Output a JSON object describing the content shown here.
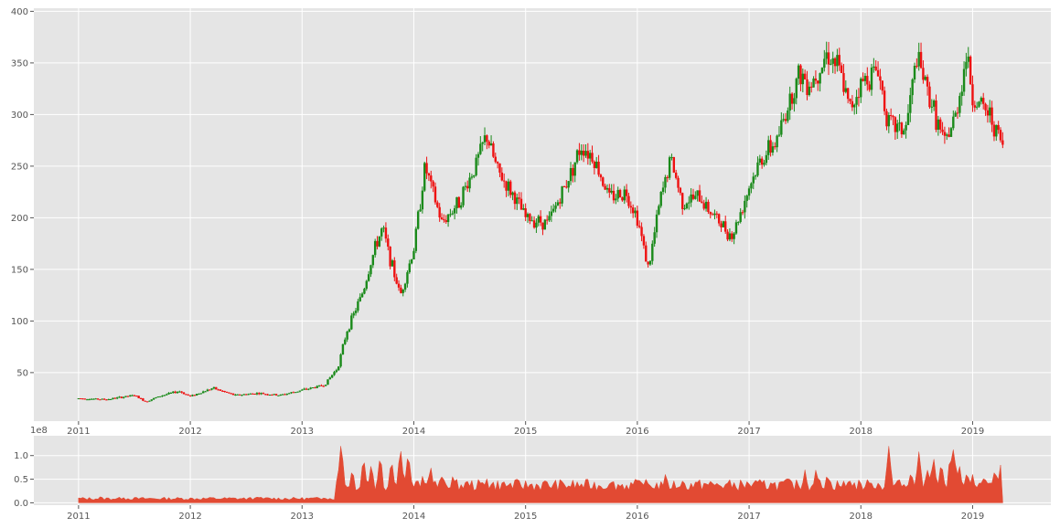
{
  "chart_data": [
    {
      "type": "candlestick",
      "xlim": [
        2010.6,
        2019.7
      ],
      "ylim": [
        3,
        403
      ],
      "x_ticks": [
        {
          "value": 2011,
          "label": "2011"
        },
        {
          "value": 2012,
          "label": "2012"
        },
        {
          "value": 2013,
          "label": "2013"
        },
        {
          "value": 2014,
          "label": "2014"
        },
        {
          "value": 2015,
          "label": "2015"
        },
        {
          "value": 2016,
          "label": "2016"
        },
        {
          "value": 2017,
          "label": "2017"
        },
        {
          "value": 2018,
          "label": "2018"
        },
        {
          "value": 2019,
          "label": "2019"
        }
      ],
      "y_ticks": [
        {
          "value": 50,
          "label": "50"
        },
        {
          "value": 100,
          "label": "100"
        },
        {
          "value": 150,
          "label": "150"
        },
        {
          "value": 200,
          "label": "200"
        },
        {
          "value": 250,
          "label": "250"
        },
        {
          "value": 300,
          "label": "300"
        },
        {
          "value": 350,
          "label": "350"
        },
        {
          "value": 400,
          "label": "400"
        }
      ],
      "grid": true,
      "colors": {
        "up": "#1a8a1a",
        "down": "#ee1111",
        "background": "#e5e5e5",
        "grid": "#ffffff"
      },
      "anchors": [
        [
          2011.0,
          25
        ],
        [
          2011.25,
          24
        ],
        [
          2011.5,
          28
        ],
        [
          2011.6,
          22
        ],
        [
          2011.75,
          28
        ],
        [
          2011.9,
          32
        ],
        [
          2012.0,
          27
        ],
        [
          2012.2,
          35
        ],
        [
          2012.4,
          28
        ],
        [
          2012.6,
          30
        ],
        [
          2012.8,
          28
        ],
        [
          2013.0,
          33
        ],
        [
          2013.2,
          38
        ],
        [
          2013.32,
          55
        ],
        [
          2013.4,
          90
        ],
        [
          2013.55,
          130
        ],
        [
          2013.65,
          170
        ],
        [
          2013.72,
          190
        ],
        [
          2013.8,
          155
        ],
        [
          2013.88,
          125
        ],
        [
          2014.0,
          170
        ],
        [
          2014.1,
          250
        ],
        [
          2014.25,
          195
        ],
        [
          2014.4,
          215
        ],
        [
          2014.55,
          250
        ],
        [
          2014.65,
          280
        ],
        [
          2014.75,
          245
        ],
        [
          2014.9,
          220
        ],
        [
          2015.0,
          200
        ],
        [
          2015.2,
          195
        ],
        [
          2015.35,
          230
        ],
        [
          2015.5,
          270
        ],
        [
          2015.6,
          260
        ],
        [
          2015.75,
          220
        ],
        [
          2015.9,
          225
        ],
        [
          2016.0,
          200
        ],
        [
          2016.1,
          150
        ],
        [
          2016.2,
          215
        ],
        [
          2016.3,
          258
        ],
        [
          2016.4,
          215
        ],
        [
          2016.55,
          220
        ],
        [
          2016.7,
          200
        ],
        [
          2016.85,
          182
        ],
        [
          2017.0,
          230
        ],
        [
          2017.1,
          255
        ],
        [
          2017.25,
          275
        ],
        [
          2017.35,
          310
        ],
        [
          2017.45,
          340
        ],
        [
          2017.55,
          330
        ],
        [
          2017.7,
          360
        ],
        [
          2017.8,
          345
        ],
        [
          2017.9,
          305
        ],
        [
          2018.0,
          330
        ],
        [
          2018.15,
          345
        ],
        [
          2018.25,
          290
        ],
        [
          2018.4,
          285
        ],
        [
          2018.5,
          355
        ],
        [
          2018.65,
          305
        ],
        [
          2018.75,
          270
        ],
        [
          2018.85,
          300
        ],
        [
          2018.95,
          360
        ],
        [
          2019.0,
          315
        ],
        [
          2019.15,
          300
        ],
        [
          2019.25,
          275
        ],
        [
          2019.27,
          268
        ]
      ]
    },
    {
      "type": "area",
      "offset_label": "1e8",
      "xlim": [
        2010.6,
        2019.7
      ],
      "ylim": [
        -0.05,
        1.42
      ],
      "x_ticks": [
        {
          "value": 2011,
          "label": "2011"
        },
        {
          "value": 2012,
          "label": "2012"
        },
        {
          "value": 2013,
          "label": "2013"
        },
        {
          "value": 2014,
          "label": "2014"
        },
        {
          "value": 2015,
          "label": "2015"
        },
        {
          "value": 2016,
          "label": "2016"
        },
        {
          "value": 2017,
          "label": "2017"
        },
        {
          "value": 2018,
          "label": "2018"
        },
        {
          "value": 2019,
          "label": "2019"
        }
      ],
      "y_ticks": [
        {
          "value": 0.0,
          "label": "0.0"
        },
        {
          "value": 0.5,
          "label": "0.5"
        },
        {
          "value": 1.0,
          "label": "1.0"
        }
      ],
      "grid": true,
      "colors": {
        "fill": "#e24a33",
        "background": "#e5e5e5",
        "grid": "#ffffff"
      },
      "peaks": [
        [
          2011.2,
          0.15
        ],
        [
          2011.4,
          0.12
        ],
        [
          2011.55,
          0.1
        ],
        [
          2012.2,
          0.13
        ],
        [
          2012.6,
          0.13
        ],
        [
          2013.2,
          0.12
        ],
        [
          2013.35,
          1.3
        ],
        [
          2013.45,
          0.75
        ],
        [
          2013.55,
          1.0
        ],
        [
          2013.62,
          0.85
        ],
        [
          2013.7,
          1.05
        ],
        [
          2013.8,
          0.95
        ],
        [
          2013.88,
          1.2
        ],
        [
          2013.95,
          1.1
        ],
        [
          2014.0,
          0.3
        ],
        [
          2014.08,
          0.6
        ],
        [
          2014.15,
          0.8
        ],
        [
          2014.25,
          0.55
        ],
        [
          2014.35,
          0.6
        ],
        [
          2014.5,
          0.35
        ],
        [
          2014.65,
          0.55
        ],
        [
          2014.8,
          0.5
        ],
        [
          2015.0,
          0.45
        ],
        [
          2015.2,
          0.4
        ],
        [
          2015.4,
          0.35
        ],
        [
          2015.55,
          0.5
        ],
        [
          2015.75,
          0.4
        ],
        [
          2016.05,
          0.45
        ],
        [
          2016.25,
          0.6
        ],
        [
          2016.4,
          0.5
        ],
        [
          2016.6,
          0.45
        ],
        [
          2016.8,
          0.4
        ],
        [
          2017.0,
          0.4
        ],
        [
          2017.2,
          0.5
        ],
        [
          2017.35,
          0.55
        ],
        [
          2017.5,
          0.7
        ],
        [
          2017.6,
          0.75
        ],
        [
          2017.7,
          0.65
        ],
        [
          2017.9,
          0.5
        ],
        [
          2018.1,
          0.45
        ],
        [
          2018.25,
          1.2
        ],
        [
          2018.35,
          0.5
        ],
        [
          2018.45,
          0.7
        ],
        [
          2018.52,
          1.1
        ],
        [
          2018.6,
          0.75
        ],
        [
          2018.65,
          1.0
        ],
        [
          2018.72,
          0.9
        ],
        [
          2018.8,
          1.05
        ],
        [
          2018.83,
          1.2
        ],
        [
          2018.88,
          0.85
        ],
        [
          2018.95,
          0.7
        ],
        [
          2019.0,
          0.6
        ],
        [
          2019.1,
          0.55
        ],
        [
          2019.2,
          0.75
        ],
        [
          2019.25,
          0.8
        ],
        [
          2019.27,
          0.05
        ]
      ]
    }
  ]
}
